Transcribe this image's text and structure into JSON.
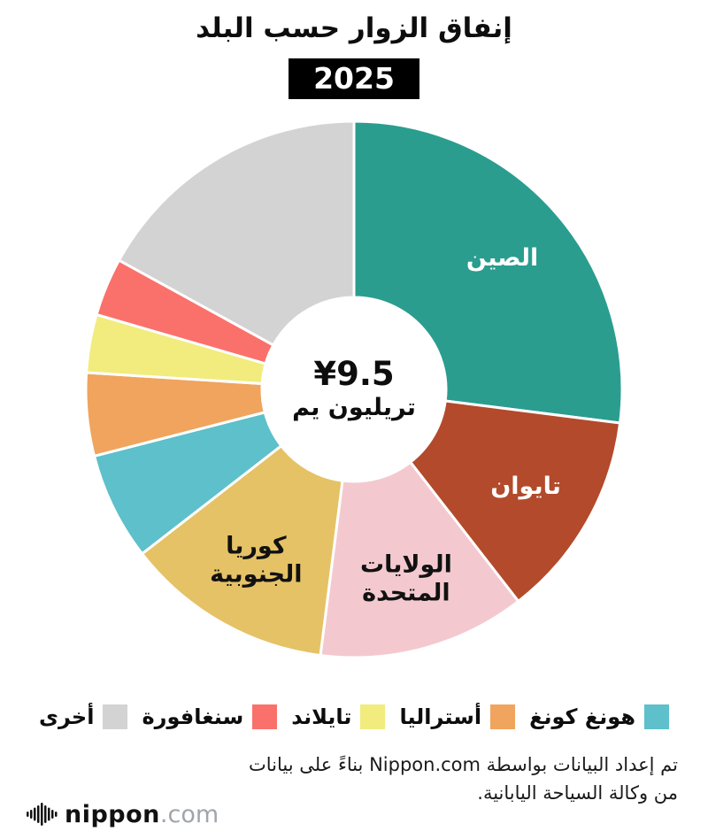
{
  "title": "إنفاق الزوار حسب البلد",
  "year_badge": "2025",
  "center": {
    "value": "¥9.5",
    "unit": "تريليون يم"
  },
  "chart_data": {
    "type": "pie",
    "title": "إنفاق الزوار حسب البلد",
    "subtitle": "2025",
    "center_label": "¥9.5 تريليون يم",
    "start_angle_deg": 0,
    "direction": "clockwise",
    "inner_radius_ratio": 0.34,
    "units": "percent share of ¥9.5 trillion",
    "slices": [
      {
        "label": "الصين",
        "value": 27,
        "color": "#2a9d8f",
        "inline_label": true,
        "label_color": "#ffffff",
        "label_lines": [
          "الصين"
        ]
      },
      {
        "label": "تايوان",
        "value": 12.5,
        "color": "#b34a2b",
        "inline_label": true,
        "label_color": "#ffffff",
        "label_lines": [
          "تايوان"
        ]
      },
      {
        "label": "الولايات المتحدة",
        "value": 12.5,
        "color": "#f3c9cf",
        "inline_label": true,
        "label_color": "#111111",
        "label_lines": [
          "الولايات",
          "المتحدة"
        ]
      },
      {
        "label": "كوريا الجنوبية",
        "value": 12.5,
        "color": "#e5c266",
        "inline_label": true,
        "label_color": "#111111",
        "label_lines": [
          "كوريا",
          "الجنوبية"
        ]
      },
      {
        "label": "هونغ كونغ",
        "value": 6.5,
        "color": "#5dc0ca",
        "inline_label": false
      },
      {
        "label": "أستراليا",
        "value": 5,
        "color": "#f0a45d",
        "inline_label": false
      },
      {
        "label": "تايلاند",
        "value": 3.5,
        "color": "#f1ec7d",
        "inline_label": false
      },
      {
        "label": "سنغافورة",
        "value": 3.5,
        "color": "#fa716b",
        "inline_label": false
      },
      {
        "label": "أخرى",
        "value": 17,
        "color": "#d3d3d3",
        "inline_label": false
      }
    ]
  },
  "legend": [
    {
      "label": "أخرى",
      "color": "#d3d3d3"
    },
    {
      "label": "سنغافورة",
      "color": "#fa716b"
    },
    {
      "label": "تايلاند",
      "color": "#f1ec7d"
    },
    {
      "label": "أستراليا",
      "color": "#f0a45d"
    },
    {
      "label": "هونغ كونغ",
      "color": "#5dc0ca"
    }
  ],
  "footer": {
    "line1": "تم إعداد البيانات بواسطة Nippon.com بناءً على بيانات",
    "line2": "من وكالة السياحة اليابانية.",
    "logo_text": "nippon",
    "logo_suffix": ".com"
  }
}
